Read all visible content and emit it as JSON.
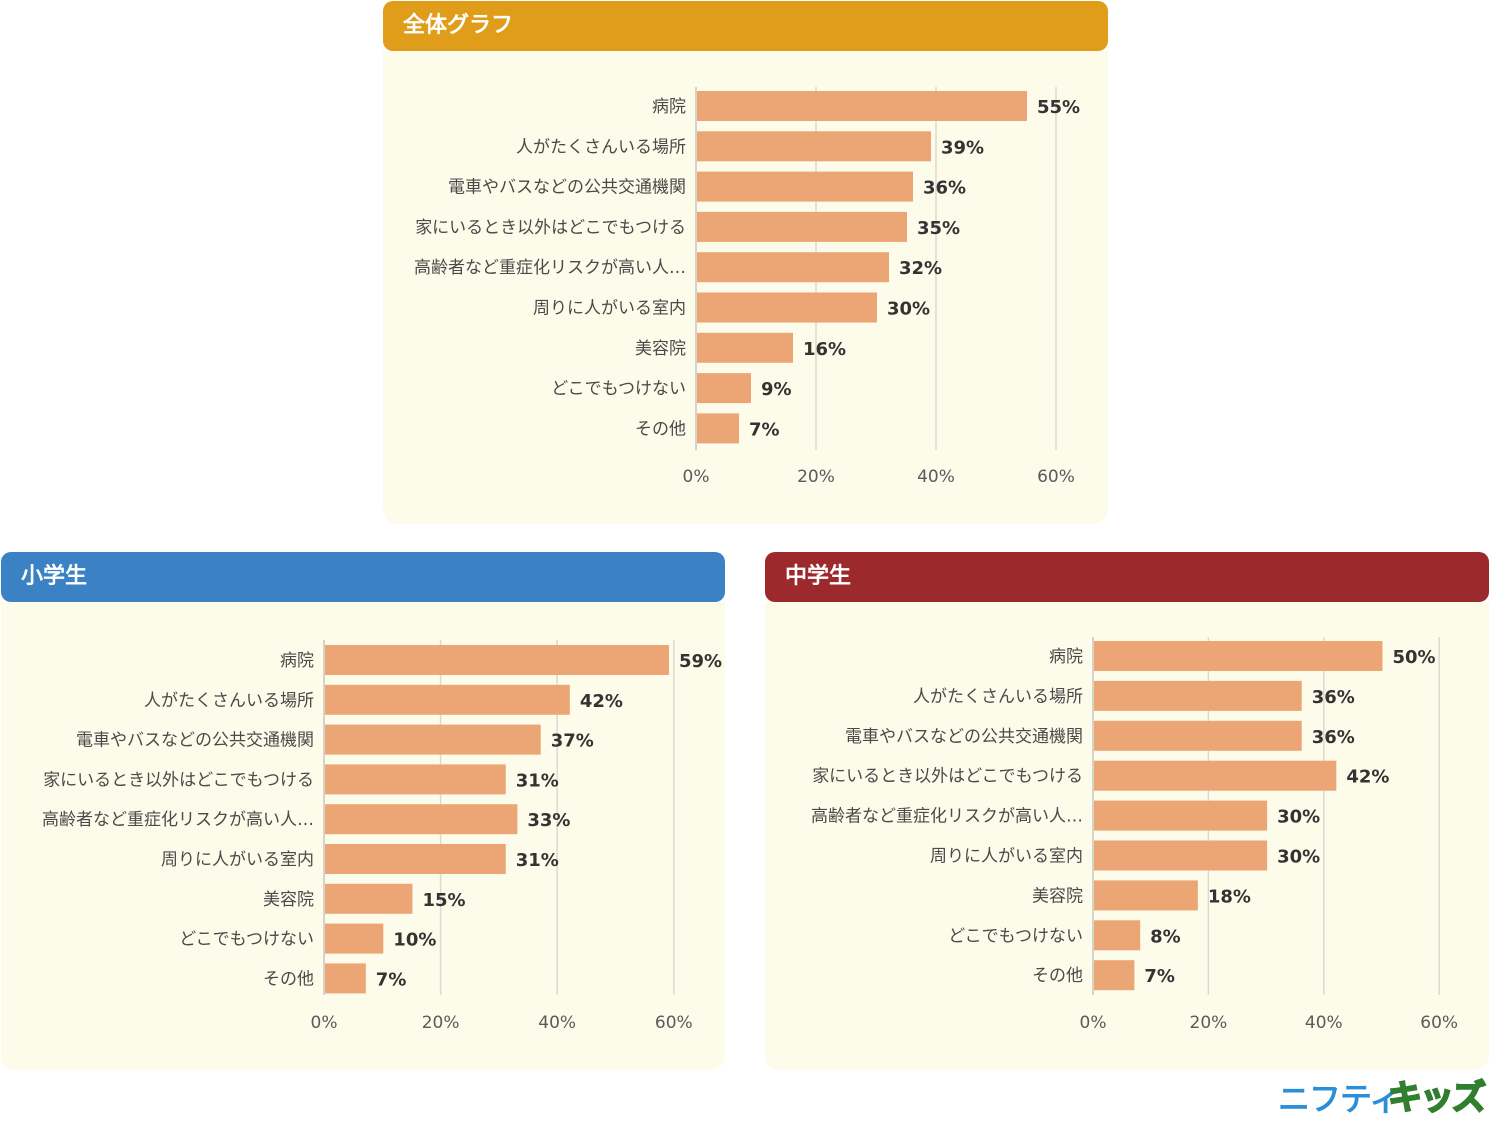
{
  "colors": {
    "bar": "#eca675",
    "grid": "#dcdad0",
    "axis": "#c9c7be",
    "header_overall": "#e09d1a",
    "header_elementary": "#3a82c4",
    "header_junior_high": "#9c2a2c",
    "panel_bg": "#fdfbea"
  },
  "logo": {
    "part1": "ニフティ",
    "part2": "キッズ"
  },
  "chart_data": [
    {
      "type": "bar",
      "orientation": "horizontal",
      "title": "全体グラフ",
      "categories": [
        "病院",
        "人がたくさんいる場所",
        "電車やバスなどの公共交通機関",
        "家にいるとき以外はどこでもつける",
        "高齢者など重症化リスクが高い人…",
        "周りに人がいる室内",
        "美容院",
        "どこでもつけない",
        "その他"
      ],
      "values": [
        55,
        39,
        36,
        35,
        32,
        30,
        16,
        9,
        7
      ],
      "value_labels": [
        "55%",
        "39%",
        "36%",
        "35%",
        "32%",
        "30%",
        "16%",
        "9%",
        "7%"
      ],
      "xlim": [
        0,
        60
      ],
      "ticks": [
        0,
        20,
        40,
        60
      ],
      "tick_labels": [
        "0%",
        "20%",
        "40%",
        "60%"
      ],
      "grid": true
    },
    {
      "type": "bar",
      "orientation": "horizontal",
      "title": "小学生",
      "categories": [
        "病院",
        "人がたくさんいる場所",
        "電車やバスなどの公共交通機関",
        "家にいるとき以外はどこでもつける",
        "高齢者など重症化リスクが高い人…",
        "周りに人がいる室内",
        "美容院",
        "どこでもつけない",
        "その他"
      ],
      "values": [
        59,
        42,
        37,
        31,
        33,
        31,
        15,
        10,
        7
      ],
      "value_labels": [
        "59%",
        "42%",
        "37%",
        "31%",
        "33%",
        "31%",
        "15%",
        "10%",
        "7%"
      ],
      "xlim": [
        0,
        60
      ],
      "ticks": [
        0,
        20,
        40,
        60
      ],
      "tick_labels": [
        "0%",
        "20%",
        "40%",
        "60%"
      ],
      "grid": true
    },
    {
      "type": "bar",
      "orientation": "horizontal",
      "title": "中学生",
      "categories": [
        "病院",
        "人がたくさんいる場所",
        "電車やバスなどの公共交通機関",
        "家にいるとき以外はどこでもつける",
        "高齢者など重症化リスクが高い人…",
        "周りに人がいる室内",
        "美容院",
        "どこでもつけない",
        "その他"
      ],
      "values": [
        50,
        36,
        36,
        42,
        30,
        30,
        18,
        8,
        7
      ],
      "value_labels": [
        "50%",
        "36%",
        "36%",
        "42%",
        "30%",
        "30%",
        "18%",
        "8%",
        "7%"
      ],
      "xlim": [
        0,
        60
      ],
      "ticks": [
        0,
        20,
        40,
        60
      ],
      "tick_labels": [
        "0%",
        "20%",
        "40%",
        "60%"
      ],
      "grid": true
    }
  ]
}
